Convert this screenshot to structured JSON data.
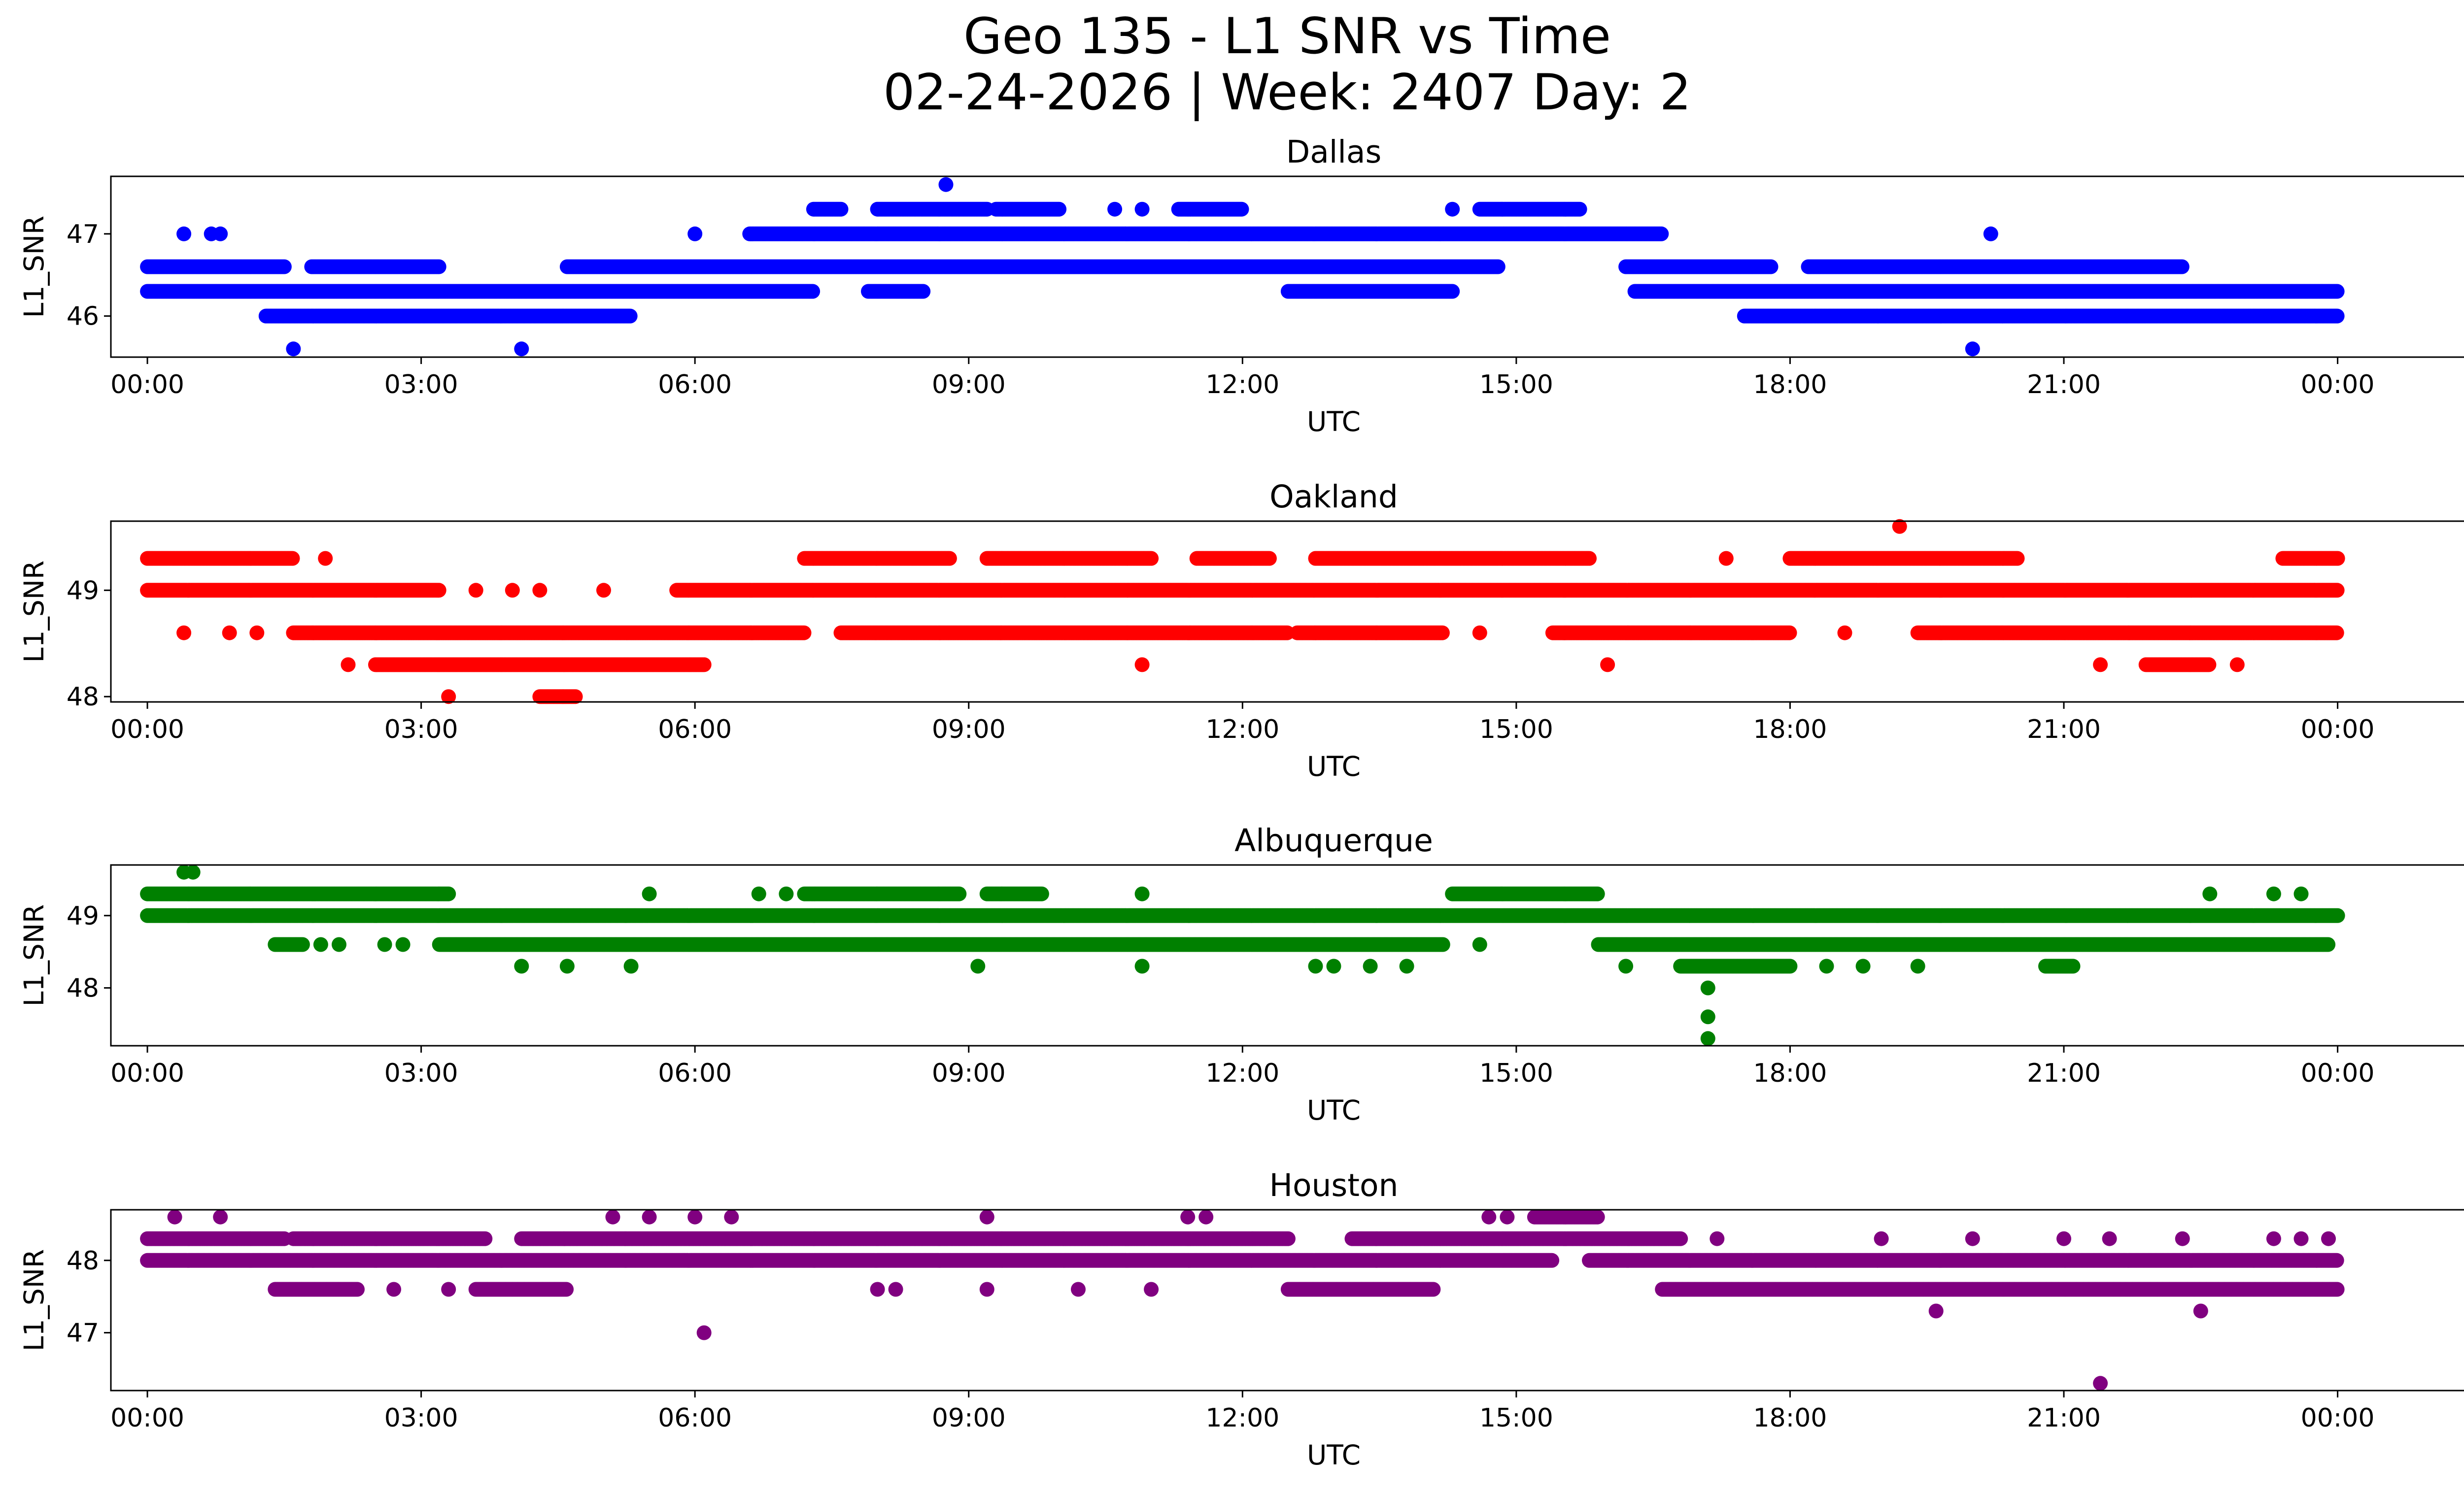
{
  "figure": {
    "title_line1": "Geo 135 - L1 SNR vs Time",
    "title_line2": "02-24-2026 | Week: 2407 Day: 2"
  },
  "chart_data": [
    {
      "type": "scatter",
      "title": "Dallas",
      "xlabel": "UTC",
      "ylabel": "L1_SNR",
      "color": "#0000ff",
      "grid": false,
      "x_range_hours": [
        -0.4,
        26.4
      ],
      "xtick_labels": [
        "00:00",
        "03:00",
        "06:00",
        "09:00",
        "12:00",
        "15:00",
        "18:00",
        "21:00",
        "00:00"
      ],
      "ylim": [
        45.5,
        47.7
      ],
      "yticks": [
        46,
        47
      ],
      "levels": [
        {
          "y": 46.0,
          "segments": [
            [
              1.3,
              5.3
            ],
            [
              17.5,
              24.0
            ]
          ],
          "outliers": []
        },
        {
          "y": 46.3,
          "segments": [
            [
              0.0,
              7.3
            ],
            [
              7.9,
              8.5
            ],
            [
              12.5,
              14.3
            ],
            [
              16.3,
              24.0
            ]
          ],
          "outliers": []
        },
        {
          "y": 46.6,
          "segments": [
            [
              0.0,
              1.5
            ],
            [
              1.8,
              3.2
            ],
            [
              4.6,
              14.8
            ],
            [
              16.2,
              17.8
            ],
            [
              18.2,
              22.3
            ]
          ],
          "outliers": []
        },
        {
          "y": 47.0,
          "segments": [
            [
              6.6,
              16.6
            ]
          ],
          "outliers": [
            0.4,
            0.7,
            0.8,
            6.0,
            20.2
          ]
        },
        {
          "y": 47.3,
          "segments": [
            [
              7.3,
              7.6
            ],
            [
              8.0,
              9.2
            ],
            [
              9.3,
              10.0
            ],
            [
              11.3,
              12.0
            ],
            [
              14.6,
              15.7
            ]
          ],
          "outliers": [
            10.6,
            10.9,
            14.3
          ]
        },
        {
          "y": 45.6,
          "segments": [],
          "outliers": [
            1.6,
            4.1,
            20.0
          ]
        },
        {
          "y": 47.6,
          "segments": [],
          "outliers": [
            8.75
          ]
        }
      ]
    },
    {
      "type": "scatter",
      "title": "Oakland",
      "xlabel": "UTC",
      "ylabel": "L1_SNR",
      "color": "#ff0000",
      "grid": false,
      "x_range_hours": [
        -0.4,
        26.4
      ],
      "xtick_labels": [
        "00:00",
        "03:00",
        "06:00",
        "09:00",
        "12:00",
        "15:00",
        "18:00",
        "21:00",
        "00:00"
      ],
      "ylim": [
        47.95,
        49.65
      ],
      "yticks": [
        48,
        49
      ],
      "levels": [
        {
          "y": 48.0,
          "segments": [
            [
              4.3,
              4.7
            ]
          ],
          "outliers": [
            3.3
          ]
        },
        {
          "y": 48.3,
          "segments": [
            [
              2.5,
              6.1
            ],
            [
              21.9,
              22.6
            ]
          ],
          "outliers": [
            2.2,
            10.9,
            16.0,
            21.4,
            22.9
          ]
        },
        {
          "y": 48.6,
          "segments": [
            [
              1.6,
              7.2
            ],
            [
              7.6,
              12.5
            ],
            [
              12.6,
              14.2
            ],
            [
              15.4,
              18.0
            ],
            [
              19.4,
              24.0
            ]
          ],
          "outliers": [
            0.4,
            0.9,
            1.2,
            14.6,
            18.6
          ]
        },
        {
          "y": 49.0,
          "segments": [
            [
              0.0,
              3.2
            ],
            [
              5.8,
              24.0
            ]
          ],
          "outliers": [
            3.6,
            4.0,
            4.3,
            5.0
          ]
        },
        {
          "y": 49.3,
          "segments": [
            [
              0.0,
              1.6
            ],
            [
              7.2,
              8.8
            ],
            [
              9.2,
              11.0
            ],
            [
              11.5,
              12.3
            ],
            [
              12.8,
              15.8
            ],
            [
              18.0,
              20.5
            ],
            [
              23.4,
              24.0
            ]
          ],
          "outliers": [
            1.95,
            17.3
          ]
        },
        {
          "y": 49.6,
          "segments": [],
          "outliers": [
            19.2
          ]
        }
      ]
    },
    {
      "type": "scatter",
      "title": "Albuquerque",
      "xlabel": "UTC",
      "ylabel": "L1_SNR",
      "color": "#008000",
      "grid": false,
      "x_range_hours": [
        -0.4,
        26.4
      ],
      "xtick_labels": [
        "00:00",
        "03:00",
        "06:00",
        "09:00",
        "12:00",
        "15:00",
        "18:00",
        "21:00",
        "00:00"
      ],
      "ylim": [
        47.2,
        49.7
      ],
      "yticks": [
        48,
        49
      ],
      "levels": [
        {
          "y": 49.0,
          "segments": [
            [
              0.0,
              24.0
            ]
          ],
          "outliers": []
        },
        {
          "y": 49.3,
          "segments": [
            [
              0.0,
              3.3
            ],
            [
              7.2,
              8.9
            ],
            [
              9.2,
              9.8
            ],
            [
              14.3,
              15.9
            ]
          ],
          "outliers": [
            5.5,
            6.7,
            7.0,
            10.9,
            22.6,
            23.3,
            23.6
          ]
        },
        {
          "y": 48.6,
          "segments": [
            [
              1.4,
              1.7
            ],
            [
              3.2,
              14.2
            ],
            [
              15.9,
              23.9
            ]
          ],
          "outliers": [
            1.9,
            2.1,
            2.6,
            2.8,
            14.6
          ]
        },
        {
          "y": 48.3,
          "segments": [
            [
              16.8,
              18.0
            ],
            [
              20.8,
              21.1
            ]
          ],
          "outliers": [
            4.1,
            4.6,
            5.3,
            9.1,
            10.9,
            12.8,
            13.0,
            13.4,
            13.8,
            16.2,
            18.4,
            18.8,
            19.4
          ]
        },
        {
          "y": 49.6,
          "segments": [],
          "outliers": [
            0.4,
            0.5
          ]
        },
        {
          "y": 48.0,
          "segments": [],
          "outliers": [
            17.1
          ]
        },
        {
          "y": 47.6,
          "segments": [],
          "outliers": [
            17.1
          ]
        },
        {
          "y": 47.3,
          "segments": [],
          "outliers": [
            17.1
          ]
        }
      ]
    },
    {
      "type": "scatter",
      "title": "Houston",
      "xlabel": "UTC",
      "ylabel": "L1_SNR",
      "color": "#800080",
      "grid": false,
      "x_range_hours": [
        -0.4,
        26.4
      ],
      "xtick_labels": [
        "00:00",
        "03:00",
        "06:00",
        "09:00",
        "12:00",
        "15:00",
        "18:00",
        "21:00",
        "00:00"
      ],
      "ylim": [
        46.2,
        48.7
      ],
      "yticks": [
        47,
        48
      ],
      "levels": [
        {
          "y": 48.0,
          "segments": [
            [
              0.0,
              15.4
            ],
            [
              15.8,
              24.0
            ]
          ],
          "outliers": []
        },
        {
          "y": 48.3,
          "segments": [
            [
              0.0,
              1.5
            ],
            [
              1.6,
              3.7
            ],
            [
              4.1,
              12.5
            ],
            [
              13.2,
              16.8
            ]
          ],
          "outliers": [
            17.2,
            19.0,
            20.0,
            21.0,
            21.5,
            22.3,
            23.3,
            23.6,
            23.9
          ]
        },
        {
          "y": 47.6,
          "segments": [
            [
              1.4,
              2.3
            ],
            [
              3.6,
              4.6
            ],
            [
              12.5,
              14.1
            ],
            [
              16.6,
              24.0
            ]
          ],
          "outliers": [
            2.7,
            3.3,
            8.0,
            8.2,
            9.2,
            10.2,
            11.0
          ]
        },
        {
          "y": 48.6,
          "segments": [
            [
              15.2,
              15.9
            ]
          ],
          "outliers": [
            0.3,
            0.8,
            5.1,
            5.5,
            6.0,
            6.4,
            9.2,
            11.4,
            11.6,
            14.7,
            14.9
          ]
        },
        {
          "y": 47.0,
          "segments": [],
          "outliers": [
            6.1
          ]
        },
        {
          "y": 47.3,
          "segments": [],
          "outliers": [
            19.6,
            22.5
          ]
        },
        {
          "y": 46.3,
          "segments": [],
          "outliers": [
            21.4
          ]
        }
      ]
    }
  ]
}
